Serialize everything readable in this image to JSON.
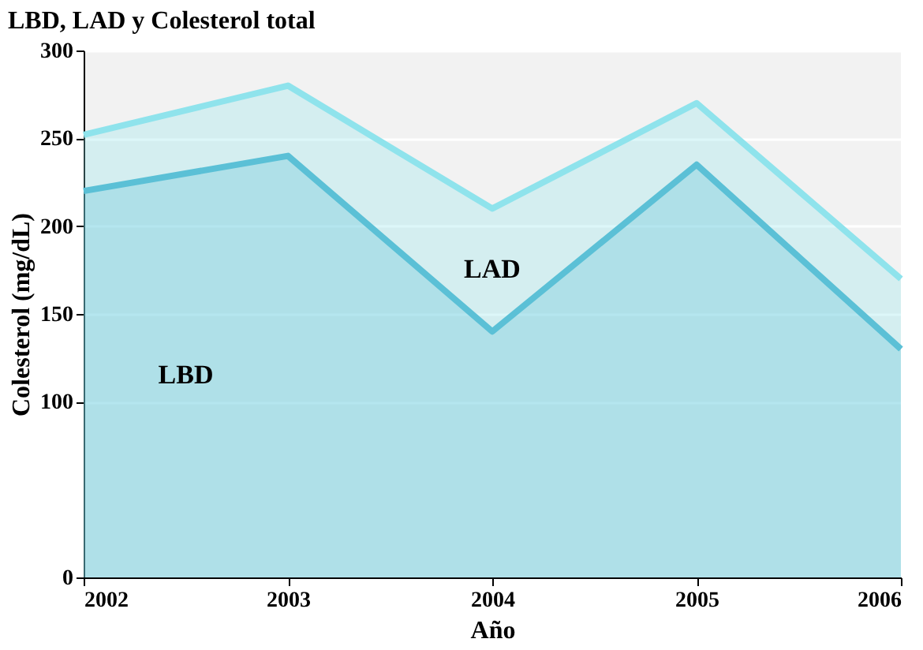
{
  "chart_data": {
    "type": "area",
    "title": "LBD, LAD y Colesterol total",
    "xlabel": "Año",
    "ylabel": "Colesterol (mg/dL)",
    "x": [
      2002,
      2003,
      2004,
      2005,
      2006
    ],
    "series": [
      {
        "name": "LBD",
        "color": "#5bc0d6",
        "values": [
          220,
          240,
          140,
          235,
          130
        ]
      },
      {
        "color": "#8fe3ec",
        "values": [
          252,
          280,
          210,
          270,
          170
        ]
      }
    ],
    "annotations": [
      "LAD"
    ],
    "xlim": [
      2002,
      2006
    ],
    "xticks": [
      2002,
      2003,
      2004,
      2005,
      2006
    ],
    "ylim": [
      0,
      300
    ],
    "yticks": [
      0,
      100,
      150,
      200,
      250,
      300
    ],
    "grid": "y"
  }
}
